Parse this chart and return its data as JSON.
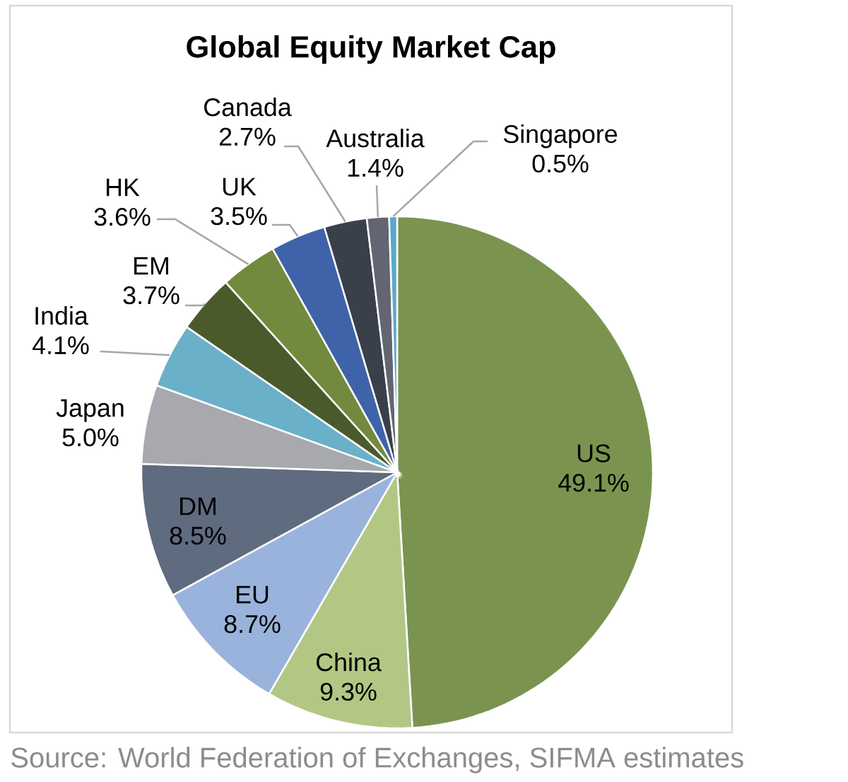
{
  "chart_data": {
    "type": "pie",
    "title": "Global Equity Market Cap",
    "categories": [
      "US",
      "China",
      "EU",
      "DM",
      "Japan",
      "India",
      "EM",
      "HK",
      "UK",
      "Canada",
      "Australia",
      "Singapore"
    ],
    "values": [
      49.1,
      9.3,
      8.7,
      8.5,
      5.0,
      4.1,
      3.7,
      3.6,
      3.5,
      2.7,
      1.4,
      0.5
    ],
    "value_labels": [
      "49.1%",
      "9.3%",
      "8.7%",
      "8.5%",
      "5.0%",
      "4.1%",
      "3.7%",
      "3.6%",
      "3.5%",
      "2.7%",
      "1.4%",
      "0.5%"
    ],
    "colors": [
      "#7a9450",
      "#b3c785",
      "#9ab3dc",
      "#5f6b7f",
      "#a7a9ae",
      "#6ab0c9",
      "#4a5a2b",
      "#728a3e",
      "#3f63a8",
      "#3a404a",
      "#636672",
      "#5aa9c8"
    ],
    "annotations": [
      "Source: World Federation of Exchanges, SIFMA estimates"
    ]
  }
}
